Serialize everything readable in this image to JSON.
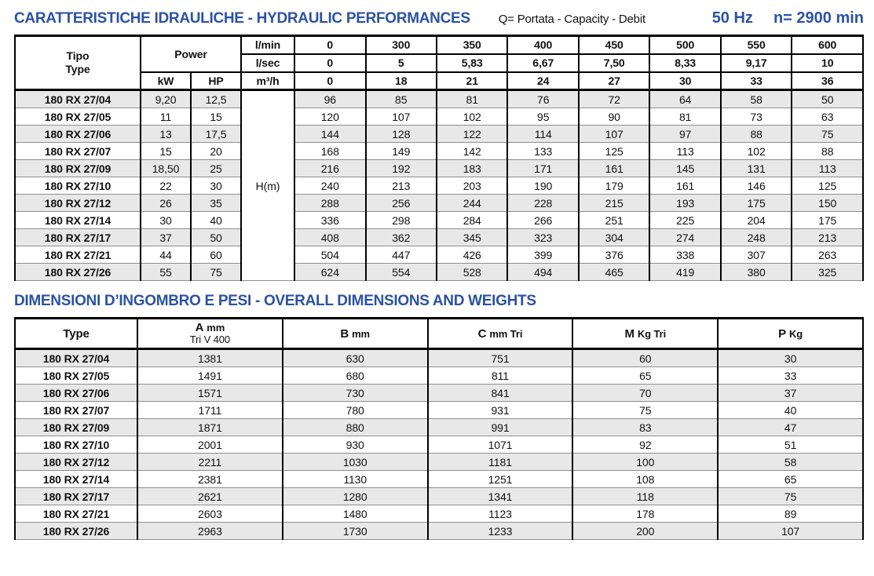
{
  "header": {
    "title": "CARATTERISTICHE IDRAULICHE - HYDRAULIC PERFORMANCES",
    "flow_legend": "Q= Portata - Capacity - Debit",
    "frequency": "50 Hz",
    "speed": "n= 2900 min"
  },
  "colors": {
    "accent_blue": "#2b52a3",
    "row_shade": "#e8e8e8"
  },
  "hydraulic_table": {
    "header": {
      "tipo": "Tipo",
      "type": "Type",
      "power": "Power",
      "kw": "kW",
      "hp": "HP"
    },
    "flow_rows": [
      {
        "unit": "l/min",
        "values": [
          "0",
          "300",
          "350",
          "400",
          "450",
          "500",
          "550",
          "600"
        ]
      },
      {
        "unit": "l/sec",
        "values": [
          "0",
          "5",
          "5,83",
          "6,67",
          "7,50",
          "8,33",
          "9,17",
          "10"
        ]
      },
      {
        "unit": "m³/h",
        "values": [
          "0",
          "18",
          "21",
          "24",
          "27",
          "30",
          "33",
          "36"
        ]
      }
    ],
    "head_unit": "H(m)",
    "rows": [
      {
        "type": "180 RX 27/04",
        "kw": "9,20",
        "hp": "12,5",
        "h": [
          "96",
          "85",
          "81",
          "76",
          "72",
          "64",
          "58",
          "50"
        ]
      },
      {
        "type": "180 RX 27/05",
        "kw": "11",
        "hp": "15",
        "h": [
          "120",
          "107",
          "102",
          "95",
          "90",
          "81",
          "73",
          "63"
        ]
      },
      {
        "type": "180 RX 27/06",
        "kw": "13",
        "hp": "17,5",
        "h": [
          "144",
          "128",
          "122",
          "114",
          "107",
          "97",
          "88",
          "75"
        ]
      },
      {
        "type": "180 RX 27/07",
        "kw": "15",
        "hp": "20",
        "h": [
          "168",
          "149",
          "142",
          "133",
          "125",
          "113",
          "102",
          "88"
        ]
      },
      {
        "type": "180 RX 27/09",
        "kw": "18,50",
        "hp": "25",
        "h": [
          "216",
          "192",
          "183",
          "171",
          "161",
          "145",
          "131",
          "113"
        ]
      },
      {
        "type": "180 RX 27/10",
        "kw": "22",
        "hp": "30",
        "h": [
          "240",
          "213",
          "203",
          "190",
          "179",
          "161",
          "146",
          "125"
        ]
      },
      {
        "type": "180 RX 27/12",
        "kw": "26",
        "hp": "35",
        "h": [
          "288",
          "256",
          "244",
          "228",
          "215",
          "193",
          "175",
          "150"
        ]
      },
      {
        "type": "180 RX 27/14",
        "kw": "30",
        "hp": "40",
        "h": [
          "336",
          "298",
          "284",
          "266",
          "251",
          "225",
          "204",
          "175"
        ]
      },
      {
        "type": "180 RX 27/17",
        "kw": "37",
        "hp": "50",
        "h": [
          "408",
          "362",
          "345",
          "323",
          "304",
          "274",
          "248",
          "213"
        ]
      },
      {
        "type": "180 RX 27/21",
        "kw": "44",
        "hp": "60",
        "h": [
          "504",
          "447",
          "426",
          "399",
          "376",
          "338",
          "307",
          "263"
        ]
      },
      {
        "type": "180 RX 27/26",
        "kw": "55",
        "hp": "75",
        "h": [
          "624",
          "554",
          "528",
          "494",
          "465",
          "419",
          "380",
          "325"
        ]
      }
    ]
  },
  "dimensions": {
    "title": "DIMENSIONI D’INGOMBRO E PESI - OVERALL DIMENSIONS AND WEIGHTS",
    "headers": [
      {
        "bold": "Type",
        "unit": "",
        "sub": ""
      },
      {
        "bold": "A",
        "unit": "mm",
        "sub": "Tri V 400"
      },
      {
        "bold": "B",
        "unit": "mm",
        "sub": ""
      },
      {
        "bold": "C",
        "unit": "mm Tri",
        "sub": ""
      },
      {
        "bold": "M",
        "unit": "Kg Tri",
        "sub": ""
      },
      {
        "bold": "P",
        "unit": "Kg",
        "sub": ""
      }
    ],
    "rows": [
      {
        "type": "180 RX 27/04",
        "values": [
          "1381",
          "630",
          "751",
          "60",
          "30"
        ]
      },
      {
        "type": "180 RX 27/05",
        "values": [
          "1491",
          "680",
          "811",
          "65",
          "33"
        ]
      },
      {
        "type": "180 RX 27/06",
        "values": [
          "1571",
          "730",
          "841",
          "70",
          "37"
        ]
      },
      {
        "type": "180 RX 27/07",
        "values": [
          "1711",
          "780",
          "931",
          "75",
          "40"
        ]
      },
      {
        "type": "180 RX 27/09",
        "values": [
          "1871",
          "880",
          "991",
          "83",
          "47"
        ]
      },
      {
        "type": "180 RX 27/10",
        "values": [
          "2001",
          "930",
          "1071",
          "92",
          "51"
        ]
      },
      {
        "type": "180 RX 27/12",
        "values": [
          "2211",
          "1030",
          "1181",
          "100",
          "58"
        ]
      },
      {
        "type": "180 RX 27/14",
        "values": [
          "2381",
          "1130",
          "1251",
          "108",
          "65"
        ]
      },
      {
        "type": "180 RX 27/17",
        "values": [
          "2621",
          "1280",
          "1341",
          "118",
          "75"
        ]
      },
      {
        "type": "180 RX 27/21",
        "values": [
          "2603",
          "1480",
          "1123",
          "178",
          "89"
        ]
      },
      {
        "type": "180 RX 27/26",
        "values": [
          "2963",
          "1730",
          "1233",
          "200",
          "107"
        ]
      }
    ]
  }
}
